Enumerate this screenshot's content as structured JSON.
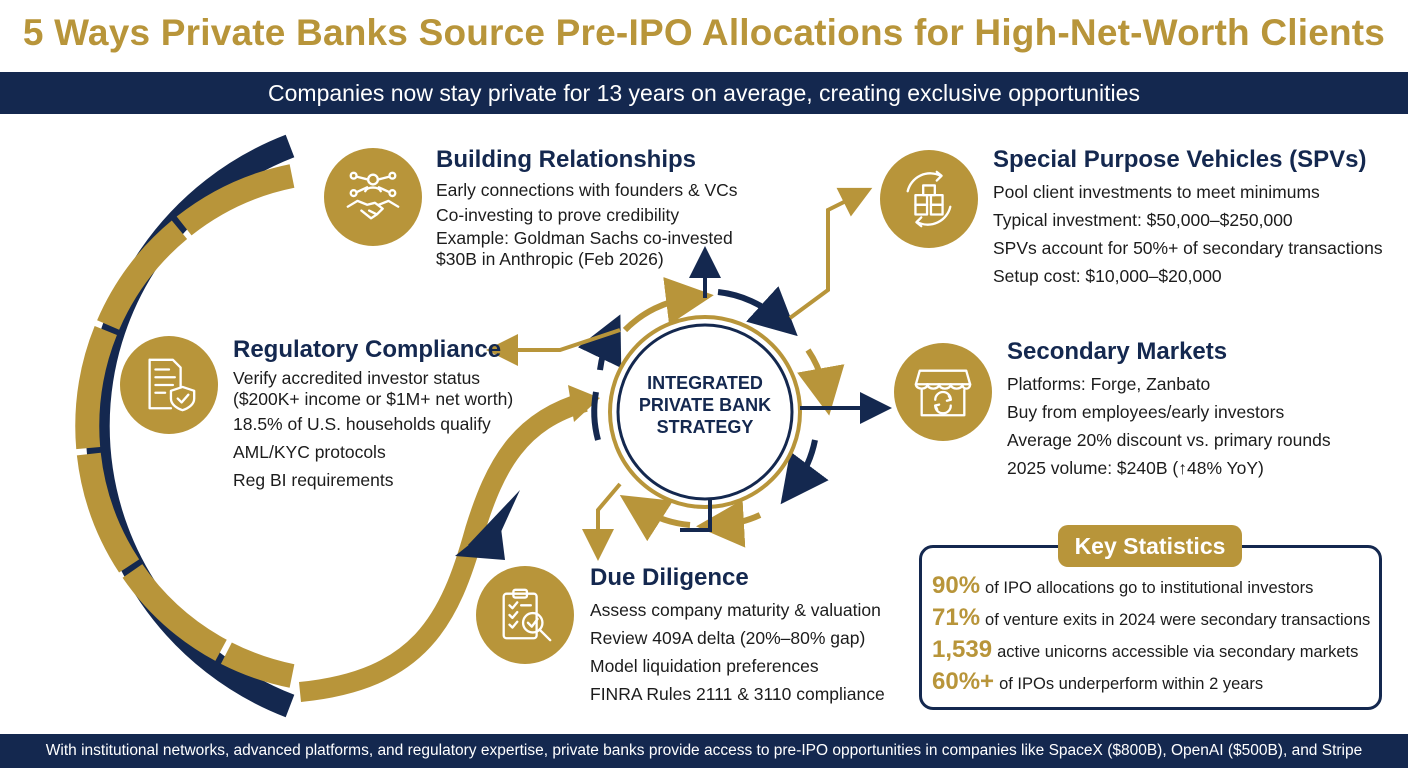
{
  "title": "5 Ways Private Banks Source Pre-IPO Allocations for High-Net-Worth Clients",
  "subtitle": "Companies now stay private for 13 years on average, creating exclusive opportunities",
  "center": {
    "line1": "INTEGRATED",
    "line2": "PRIVATE BANK",
    "line3": "STRATEGY"
  },
  "colors": {
    "navy": "#14284f",
    "gold": "#b8953a"
  },
  "sections": {
    "relationships": {
      "icon": "handshake-network-icon",
      "title": "Building Relationships",
      "items": [
        "Early connections with founders & VCs",
        "Co-investing to prove credibility",
        "Example: Goldman Sachs co-invested",
        "$30B in Anthropic (Feb 2026)"
      ]
    },
    "spv": {
      "icon": "boxes-cycle-icon",
      "title": "Special Purpose Vehicles (SPVs)",
      "items": [
        "Pool client investments to meet minimums",
        "Typical investment: $50,000–$250,000",
        "SPVs account for 50%+ of secondary transactions",
        "Setup cost: $10,000–$20,000"
      ]
    },
    "compliance": {
      "icon": "document-shield-icon",
      "title": "Regulatory Compliance",
      "items": [
        "Verify accredited investor status",
        "($200K+ income or $1M+ net worth)",
        "18.5% of U.S. households qualify",
        "AML/KYC protocols",
        "Reg BI requirements"
      ]
    },
    "secondary": {
      "icon": "storefront-exchange-icon",
      "title": "Secondary Markets",
      "items": [
        "Platforms: Forge, Zanbato",
        "Buy from employees/early investors",
        "Average 20% discount vs. primary rounds",
        "2025 volume: $240B (↑48% YoY)"
      ]
    },
    "diligence": {
      "icon": "clipboard-magnifier-icon",
      "title": "Due Diligence",
      "items": [
        "Assess company maturity & valuation",
        "Review 409A delta (20%–80% gap)",
        "Model liquidation preferences",
        "FINRA Rules 2111 & 3110 compliance"
      ]
    }
  },
  "stats": {
    "title": "Key Statistics",
    "items": [
      {
        "value": "90%",
        "text": "of IPO allocations go to institutional investors"
      },
      {
        "value": "71%",
        "text": "of venture exits in 2024 were secondary transactions"
      },
      {
        "value": "1,539",
        "text": "active unicorns accessible via secondary markets"
      },
      {
        "value": "60%+",
        "text": "of IPOs underperform within 2 years"
      }
    ]
  },
  "footer": "With institutional networks, advanced platforms, and regulatory expertise, private banks provide access to pre-IPO opportunities in companies like SpaceX ($800B), OpenAI ($500B), and Stripe"
}
